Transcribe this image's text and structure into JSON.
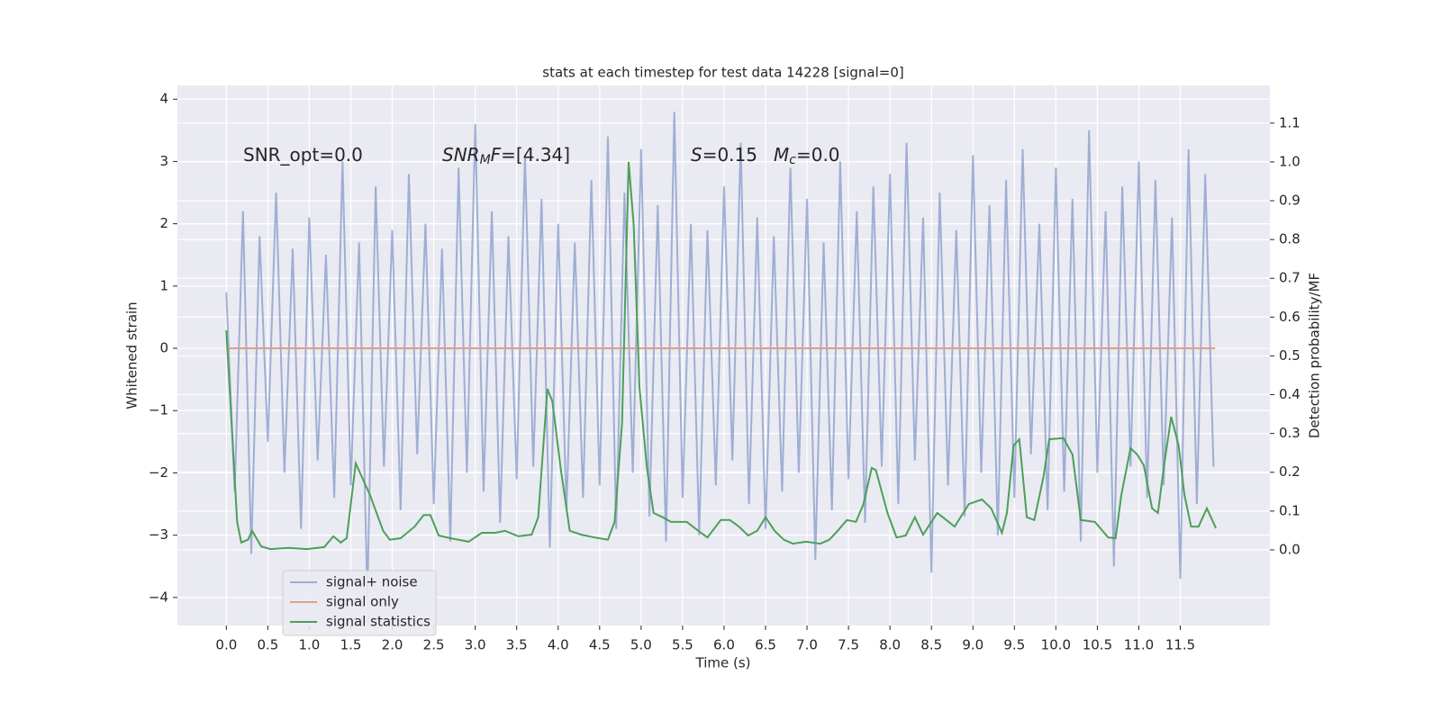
{
  "chart_data": {
    "type": "line",
    "title": "stats at each timestep for test data 14228 [signal=0]",
    "xlabel": "Time (s)",
    "ylabel": "Whitened strain",
    "y2label": "Detection probability/MF",
    "annotations": [
      [
        {
          "text": "SNR_opt=0.0",
          "style": "normal"
        }
      ],
      [
        {
          "text": "SNR",
          "style": "italic"
        },
        {
          "text": "M",
          "style": "italic-sub"
        },
        {
          "text": "F",
          "style": "italic"
        },
        {
          "text": "=[4.34]",
          "style": "normal"
        }
      ],
      [
        {
          "text": "S",
          "style": "italic"
        },
        {
          "text": "=0.15",
          "style": "normal"
        }
      ],
      [
        {
          "text": "M",
          "style": "italic"
        },
        {
          "text": "c",
          "style": "italic-sub"
        },
        {
          "text": "=0.0",
          "style": "normal"
        }
      ]
    ],
    "xlim": [
      -0.59,
      12.58
    ],
    "ylim": [
      -4.45,
      4.22
    ],
    "y2lim": [
      -0.195,
      1.197
    ],
    "xticks": [
      {
        "value": 0,
        "label": "0.0"
      },
      0.5,
      {
        "value": 1,
        "label": "1.0"
      },
      1.5,
      {
        "value": 2,
        "label": "2.0"
      },
      2.5,
      {
        "value": 3,
        "label": "3.0"
      },
      3.5,
      {
        "value": 4,
        "label": "4.0"
      },
      4.5,
      {
        "value": 5,
        "label": "5.0"
      },
      5.5,
      {
        "value": 6,
        "label": "6.0"
      },
      6.5,
      {
        "value": 7,
        "label": "7.0"
      },
      7.5,
      {
        "value": 8,
        "label": "8.0"
      },
      8.5,
      {
        "value": 9,
        "label": "9.0"
      },
      9.5,
      {
        "value": 10,
        "label": "10.0"
      },
      10.5,
      {
        "value": 11,
        "label": "11.0"
      },
      11.5
    ],
    "yticks": [
      {
        "value": -4,
        "label": "−4"
      },
      {
        "value": -3,
        "label": "−3"
      },
      {
        "value": -2,
        "label": "−2"
      },
      {
        "value": -1,
        "label": "−1"
      },
      0,
      1,
      2,
      3,
      4
    ],
    "y2ticks": [
      {
        "value": 0,
        "label": "0.0"
      },
      0.1,
      0.2,
      0.3,
      0.4,
      0.5,
      0.6,
      0.7,
      0.8,
      0.9,
      {
        "value": 1,
        "label": "1.0"
      },
      1.1
    ],
    "grid": true,
    "legend": "lower left",
    "series": [
      {
        "name": "signal+ noise",
        "color": "#8c9fcc",
        "x": [
          0,
          0.1,
          0.2,
          0.3,
          0.4,
          0.5,
          0.6,
          0.7,
          0.8,
          0.9,
          1,
          1.1,
          1.2,
          1.3,
          1.4,
          1.5,
          1.6,
          1.7,
          1.8,
          1.9,
          2,
          2.1,
          2.2,
          2.3,
          2.4,
          2.5,
          2.6,
          2.7,
          2.8,
          2.9,
          3,
          3.1,
          3.2,
          3.3,
          3.4,
          3.5,
          3.6,
          3.7,
          3.8,
          3.9,
          4,
          4.1,
          4.2,
          4.3,
          4.4,
          4.5,
          4.6,
          4.7,
          4.8,
          4.9,
          5,
          5.1,
          5.2,
          5.3,
          5.4,
          5.5,
          5.6,
          5.7,
          5.8,
          5.9,
          6,
          6.1,
          6.2,
          6.3,
          6.4,
          6.5,
          6.6,
          6.7,
          6.8,
          6.9,
          7,
          7.1,
          7.2,
          7.3,
          7.4,
          7.5,
          7.6,
          7.7,
          7.8,
          7.9,
          8,
          8.1,
          8.2,
          8.3,
          8.4,
          8.5,
          8.6,
          8.7,
          8.8,
          8.9,
          9,
          9.1,
          9.2,
          9.3,
          9.4,
          9.5,
          9.6,
          9.7,
          9.8,
          9.9,
          10,
          10.1,
          10.2,
          10.3,
          10.4,
          10.5,
          10.6,
          10.7,
          10.8,
          10.9,
          11,
          11.1,
          11.2,
          11.3,
          11.4,
          11.5,
          11.6,
          11.7,
          11.8,
          11.9
        ],
        "values": [
          0.9,
          -2.3,
          2.2,
          -3.3,
          1.8,
          -1.5,
          2.5,
          -2.0,
          1.6,
          -2.9,
          2.1,
          -1.8,
          1.5,
          -2.4,
          3.0,
          -2.2,
          1.7,
          -4.0,
          2.6,
          -1.9,
          1.9,
          -2.6,
          2.8,
          -1.7,
          2.0,
          -2.5,
          1.6,
          -3.1,
          2.9,
          -2.0,
          3.6,
          -2.3,
          2.2,
          -2.8,
          1.8,
          -2.1,
          3.1,
          -1.9,
          2.4,
          -3.2,
          2.0,
          -2.6,
          1.7,
          -2.4,
          2.7,
          -2.2,
          3.4,
          -2.9,
          2.5,
          -2.0,
          3.2,
          -2.7,
          2.3,
          -3.1,
          3.8,
          -2.4,
          2.0,
          -3.0,
          1.9,
          -2.2,
          2.6,
          -1.8,
          3.3,
          -2.5,
          2.1,
          -2.9,
          1.8,
          -2.3,
          2.9,
          -2.0,
          2.4,
          -3.4,
          1.7,
          -2.6,
          3.0,
          -2.1,
          2.2,
          -2.8,
          2.6,
          -1.9,
          2.8,
          -2.5,
          3.3,
          -1.8,
          2.1,
          -3.6,
          2.5,
          -2.2,
          1.9,
          -2.7,
          3.1,
          -2.0,
          2.3,
          -3.0,
          2.7,
          -2.4,
          3.2,
          -1.7,
          2.0,
          -2.6,
          2.9,
          -2.3,
          2.4,
          -3.1,
          3.5,
          -2.0,
          2.2,
          -3.5,
          2.6,
          -1.9,
          3.0,
          -2.4,
          2.7,
          -2.2,
          2.1,
          -3.7,
          3.2,
          -2.5,
          2.8,
          -1.9
        ],
        "alpha": 0.8
      },
      {
        "name": "signal only",
        "color": "#e1a083",
        "x": [
          0,
          11.92
        ],
        "values": [
          0,
          0
        ]
      },
      {
        "name": "signal statistics",
        "color": "#4c9f5a",
        "axis": "y2",
        "x": [
          0,
          0.13,
          0.18,
          0.26,
          0.31,
          0.42,
          0.53,
          0.75,
          0.97,
          1.18,
          1.29,
          1.38,
          1.45,
          1.56,
          1.73,
          1.89,
          1.97,
          2.1,
          2.27,
          2.38,
          2.46,
          2.56,
          2.7,
          2.92,
          3.08,
          3.24,
          3.36,
          3.52,
          3.68,
          3.76,
          3.87,
          3.93,
          4.03,
          4.14,
          4.28,
          4.44,
          4.6,
          4.68,
          4.77,
          4.85,
          4.91,
          4.98,
          5.07,
          5.15,
          5.26,
          5.36,
          5.55,
          5.69,
          5.8,
          5.96,
          6.07,
          6.18,
          6.29,
          6.4,
          6.5,
          6.61,
          6.72,
          6.83,
          6.99,
          7.16,
          7.27,
          7.37,
          7.48,
          7.59,
          7.68,
          7.78,
          7.83,
          7.97,
          8.08,
          8.19,
          8.3,
          8.4,
          8.57,
          8.68,
          8.78,
          8.95,
          9.11,
          9.22,
          9.35,
          9.41,
          9.49,
          9.56,
          9.65,
          9.74,
          9.85,
          9.92,
          10.09,
          10.2,
          10.3,
          10.47,
          10.63,
          10.72,
          10.79,
          10.9,
          10.98,
          11.06,
          11.16,
          11.23,
          11.3,
          11.39,
          11.48,
          11.55,
          11.63,
          11.72,
          11.82,
          11.93
        ],
        "values": [
          0.566,
          0.072,
          0.019,
          0.026,
          0.049,
          0.009,
          0.002,
          0.005,
          0.002,
          0.007,
          0.035,
          0.019,
          0.03,
          0.223,
          0.142,
          0.049,
          0.026,
          0.03,
          0.06,
          0.09,
          0.09,
          0.037,
          0.03,
          0.021,
          0.044,
          0.044,
          0.049,
          0.035,
          0.039,
          0.084,
          0.415,
          0.383,
          0.211,
          0.049,
          0.039,
          0.032,
          0.026,
          0.072,
          0.327,
          1.0,
          0.838,
          0.42,
          0.211,
          0.095,
          0.084,
          0.072,
          0.072,
          0.049,
          0.032,
          0.077,
          0.077,
          0.06,
          0.037,
          0.049,
          0.084,
          0.049,
          0.026,
          0.016,
          0.021,
          0.016,
          0.026,
          0.049,
          0.077,
          0.072,
          0.118,
          0.211,
          0.206,
          0.095,
          0.032,
          0.037,
          0.084,
          0.039,
          0.095,
          0.077,
          0.06,
          0.118,
          0.13,
          0.107,
          0.044,
          0.095,
          0.269,
          0.285,
          0.084,
          0.077,
          0.188,
          0.285,
          0.288,
          0.246,
          0.077,
          0.072,
          0.032,
          0.03,
          0.142,
          0.262,
          0.246,
          0.218,
          0.107,
          0.095,
          0.211,
          0.343,
          0.269,
          0.142,
          0.06,
          0.06,
          0.107,
          0.056
        ]
      }
    ]
  }
}
